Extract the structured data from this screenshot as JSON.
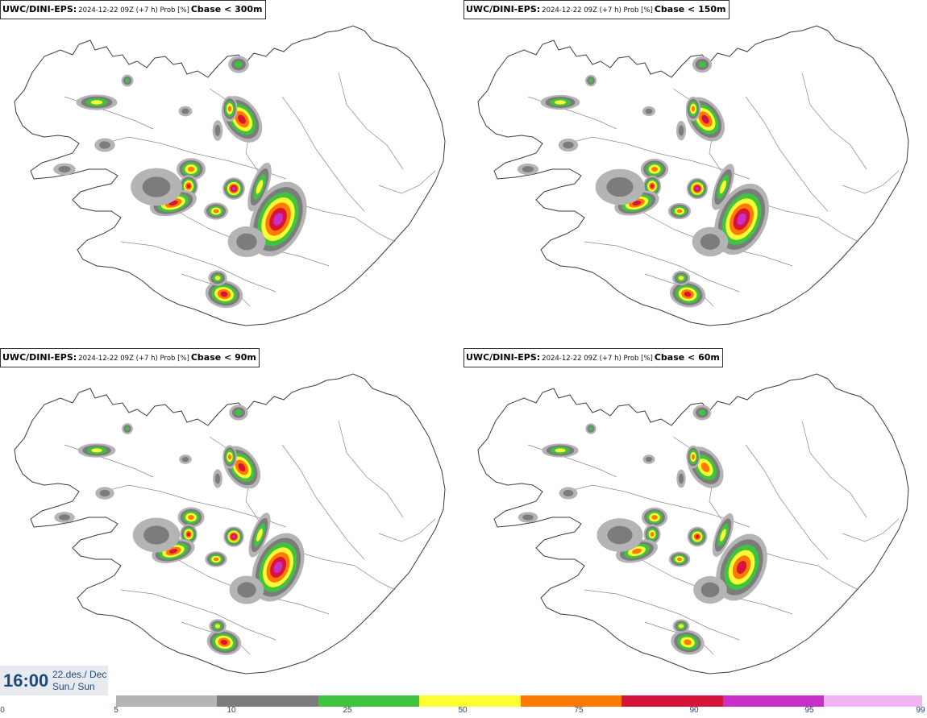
{
  "panels": [
    {
      "model": "UWC/DINI-EPS:",
      "run": "2024-12-22 09Z (+7 h) Prob [%]",
      "variable": "Cbase < 300m",
      "intensity": 1.25
    },
    {
      "model": "UWC/DINI-EPS:",
      "run": "2024-12-22 09Z (+7 h) Prob [%]",
      "variable": "Cbase < 150m",
      "intensity": 1.05
    },
    {
      "model": "UWC/DINI-EPS:",
      "run": "2024-12-22 09Z (+7 h) Prob [%]",
      "variable": "Cbase < 90m",
      "intensity": 0.9
    },
    {
      "model": "UWC/DINI-EPS:",
      "run": "2024-12-22 09Z (+7 h) Prob [%]",
      "variable": "Cbase < 60m",
      "intensity": 0.8
    }
  ],
  "valid_time": {
    "time": "16:00",
    "date": "22.des./ Dec",
    "weekday": "Sun./ Sun"
  },
  "legend": {
    "labels": [
      "0",
      "5",
      "10",
      "25",
      "50",
      "75",
      "90",
      "95",
      "99"
    ],
    "colors": [
      "#b4b4b4",
      "#7c7c7c",
      "#3ec43e",
      "#ffff33",
      "#ff7a00",
      "#d8133a",
      "#c72fc7",
      "#f1b3f1"
    ]
  }
}
